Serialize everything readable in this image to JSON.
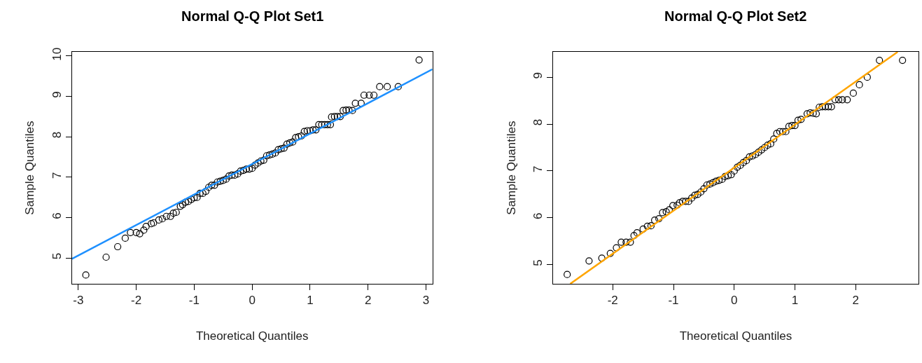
{
  "chart_data": [
    {
      "type": "scatter",
      "title": "Normal Q-Q Plot Set1",
      "xlabel": "Theoretical Quantiles",
      "ylabel": "Sample Quantiles",
      "xlim": [
        -3.11,
        3.11
      ],
      "ylim": [
        4.36,
        10.1
      ],
      "xticks": [
        -3,
        -2,
        -1,
        0,
        1,
        2,
        3
      ],
      "yticks": [
        5,
        6,
        7,
        8,
        9,
        10
      ],
      "grid": false,
      "series": [
        {
          "marker": "circle",
          "color": "#000000",
          "x": [
            -2.87,
            -2.52,
            -2.32,
            -2.19,
            -2.1,
            -2.0,
            -1.94,
            -1.87,
            -1.83,
            -1.74,
            -1.7,
            -1.61,
            -1.55,
            -1.48,
            -1.41,
            -1.36,
            -1.31,
            -1.24,
            -1.2,
            -1.15,
            -1.1,
            -1.05,
            -1.0,
            -0.95,
            -0.9,
            -0.85,
            -0.8,
            -0.75,
            -0.7,
            -0.65,
            -0.6,
            -0.55,
            -0.5,
            -0.45,
            -0.4,
            -0.35,
            -0.3,
            -0.25,
            -0.2,
            -0.15,
            -0.1,
            -0.05,
            0.0,
            0.05,
            0.1,
            0.15,
            0.2,
            0.25,
            0.3,
            0.35,
            0.4,
            0.45,
            0.5,
            0.55,
            0.6,
            0.65,
            0.7,
            0.75,
            0.8,
            0.85,
            0.9,
            0.95,
            1.0,
            1.05,
            1.1,
            1.15,
            1.2,
            1.25,
            1.3,
            1.35,
            1.37,
            1.42,
            1.47,
            1.52,
            1.57,
            1.62,
            1.67,
            1.73,
            1.78,
            1.88,
            1.93,
            2.02,
            2.1,
            2.2,
            2.33,
            2.52,
            2.88
          ],
          "values": [
            4.58,
            5.02,
            5.28,
            5.49,
            5.63,
            5.63,
            5.6,
            5.69,
            5.78,
            5.85,
            5.87,
            5.94,
            5.97,
            6.03,
            6.03,
            6.11,
            6.13,
            6.28,
            6.32,
            6.38,
            6.4,
            6.45,
            6.49,
            6.5,
            6.6,
            6.6,
            6.65,
            6.75,
            6.8,
            6.8,
            6.88,
            6.9,
            6.92,
            6.95,
            7.03,
            7.05,
            7.05,
            7.08,
            7.15,
            7.17,
            7.2,
            7.2,
            7.22,
            7.3,
            7.35,
            7.4,
            7.42,
            7.53,
            7.55,
            7.57,
            7.6,
            7.68,
            7.7,
            7.72,
            7.82,
            7.85,
            7.87,
            7.98,
            8.0,
            8.02,
            8.13,
            8.15,
            8.15,
            8.17,
            8.17,
            8.3,
            8.3,
            8.3,
            8.3,
            8.3,
            8.49,
            8.5,
            8.5,
            8.5,
            8.65,
            8.66,
            8.66,
            8.65,
            8.83,
            8.83,
            9.03,
            9.03,
            9.03,
            9.24,
            9.24,
            9.24,
            9.9
          ]
        },
        {
          "type": "line",
          "color": "#1e90ff",
          "x": [
            -3.11,
            3.11
          ],
          "values": [
            4.98,
            9.67
          ]
        }
      ]
    },
    {
      "type": "scatter",
      "title": "Normal Q-Q Plot Set2",
      "xlabel": "Theoretical Quantiles",
      "ylabel": "Sample Quantiles",
      "xlim": [
        -2.98,
        3.03
      ],
      "ylim": [
        4.59,
        9.54
      ],
      "xticks": [
        -2,
        -1,
        0,
        1,
        2
      ],
      "yticks": [
        5,
        6,
        7,
        8,
        9
      ],
      "grid": false,
      "series": [
        {
          "marker": "circle",
          "color": "#000000",
          "x": [
            -2.75,
            -2.39,
            -2.18,
            -2.04,
            -1.94,
            -1.86,
            -1.78,
            -1.71,
            -1.65,
            -1.6,
            -1.5,
            -1.43,
            -1.37,
            -1.31,
            -1.24,
            -1.18,
            -1.12,
            -1.07,
            -1.01,
            -0.94,
            -0.9,
            -0.85,
            -0.8,
            -0.75,
            -0.7,
            -0.65,
            -0.6,
            -0.55,
            -0.5,
            -0.45,
            -0.4,
            -0.35,
            -0.3,
            -0.25,
            -0.2,
            -0.15,
            -0.1,
            -0.05,
            0.0,
            0.05,
            0.1,
            0.15,
            0.2,
            0.25,
            0.3,
            0.35,
            0.4,
            0.45,
            0.5,
            0.55,
            0.6,
            0.65,
            0.7,
            0.75,
            0.8,
            0.85,
            0.9,
            0.95,
            1.0,
            1.05,
            1.1,
            1.2,
            1.25,
            1.3,
            1.35,
            1.4,
            1.45,
            1.5,
            1.55,
            1.6,
            1.66,
            1.72,
            1.78,
            1.86,
            1.96,
            2.06,
            2.19,
            2.39,
            2.77
          ],
          "values": [
            4.79,
            5.08,
            5.14,
            5.24,
            5.36,
            5.48,
            5.48,
            5.48,
            5.62,
            5.68,
            5.76,
            5.82,
            5.83,
            5.95,
            5.98,
            6.11,
            6.13,
            6.17,
            6.26,
            6.27,
            6.32,
            6.35,
            6.35,
            6.35,
            6.42,
            6.48,
            6.5,
            6.55,
            6.62,
            6.7,
            6.72,
            6.75,
            6.78,
            6.8,
            6.82,
            6.88,
            6.9,
            6.92,
            7.0,
            7.08,
            7.12,
            7.18,
            7.22,
            7.3,
            7.32,
            7.35,
            7.4,
            7.45,
            7.5,
            7.55,
            7.58,
            7.68,
            7.8,
            7.84,
            7.84,
            7.84,
            7.95,
            7.97,
            7.97,
            8.08,
            8.1,
            8.22,
            8.24,
            8.23,
            8.22,
            8.36,
            8.37,
            8.37,
            8.37,
            8.37,
            8.52,
            8.52,
            8.52,
            8.52,
            8.66,
            8.84,
            9.0,
            9.36,
            9.36
          ]
        },
        {
          "type": "line",
          "color": "#ffa500",
          "x": [
            -2.7,
            2.69
          ],
          "values": [
            4.59,
            9.54
          ]
        }
      ]
    }
  ]
}
